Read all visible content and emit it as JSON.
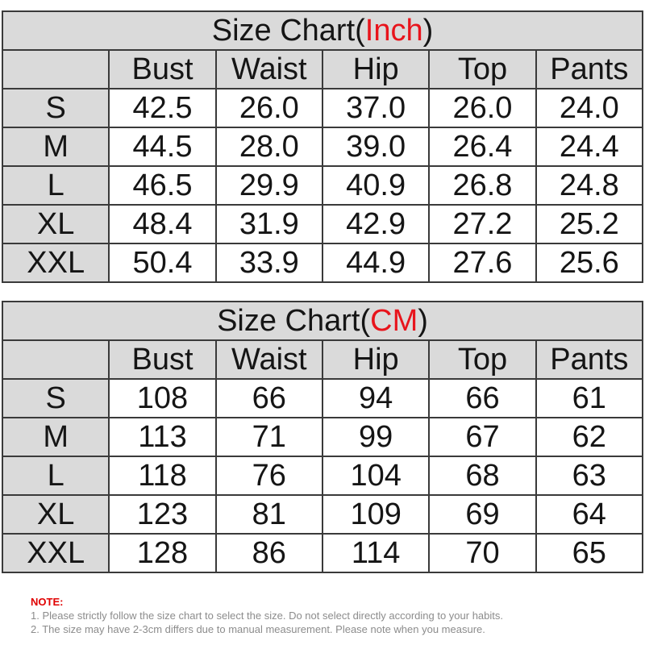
{
  "tables": [
    {
      "title_prefix": "Size Chart(",
      "title_unit": "Inch",
      "title_suffix": ")",
      "columns": [
        "Bust",
        "Waist",
        "Hip",
        "Top",
        "Pants"
      ],
      "rows": [
        {
          "size": "S",
          "values": [
            "42.5",
            "26.0",
            "37.0",
            "26.0",
            "24.0"
          ]
        },
        {
          "size": "M",
          "values": [
            "44.5",
            "28.0",
            "39.0",
            "26.4",
            "24.4"
          ]
        },
        {
          "size": "L",
          "values": [
            "46.5",
            "29.9",
            "40.9",
            "26.8",
            "24.8"
          ]
        },
        {
          "size": "XL",
          "values": [
            "48.4",
            "31.9",
            "42.9",
            "27.2",
            "25.2"
          ]
        },
        {
          "size": "XXL",
          "values": [
            "50.4",
            "33.9",
            "44.9",
            "27.6",
            "25.6"
          ]
        }
      ]
    },
    {
      "title_prefix": "Size Chart(",
      "title_unit": "CM",
      "title_suffix": ")",
      "columns": [
        "Bust",
        "Waist",
        "Hip",
        "Top",
        "Pants"
      ],
      "rows": [
        {
          "size": "S",
          "values": [
            "108",
            "66",
            "94",
            "66",
            "61"
          ]
        },
        {
          "size": "M",
          "values": [
            "113",
            "71",
            "99",
            "67",
            "62"
          ]
        },
        {
          "size": "L",
          "values": [
            "118",
            "76",
            "104",
            "68",
            "63"
          ]
        },
        {
          "size": "XL",
          "values": [
            "123",
            "81",
            "109",
            "69",
            "64"
          ]
        },
        {
          "size": "XXL",
          "values": [
            "128",
            "86",
            "114",
            "70",
            "65"
          ]
        }
      ]
    }
  ],
  "notes": {
    "title": "NOTE:",
    "lines": [
      "1. Please strictly follow the size chart  to select the size. Do not select directly according to your habits.",
      "2. The size may have 2-3cm differs due to manual measurement. Please note when you measure."
    ]
  },
  "colors": {
    "accent": "#e8141c",
    "header_bg": "#dadada",
    "note_title": "#e00000",
    "note_text": "#8c8c8c"
  }
}
